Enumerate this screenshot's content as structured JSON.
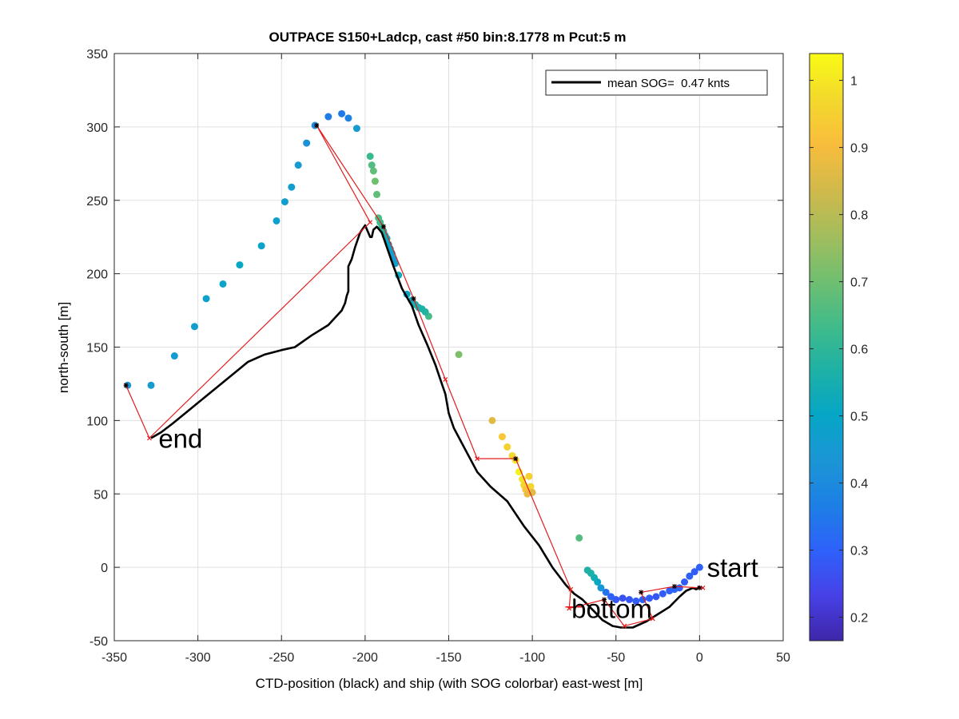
{
  "chart_data": {
    "type": "scatter",
    "title": "OUTPACE S150+Ladcp, cast #50 bin:8.1778 m  Pcut:5 m",
    "xlabel": "CTD-position (black) and ship (with SOG colorbar) east-west [m]",
    "ylabel": "north-south [m]",
    "xlim": [
      -350,
      50
    ],
    "ylim": [
      -50,
      350
    ],
    "xticks": [
      "-350",
      "-300",
      "-250",
      "-200",
      "-150",
      "-100",
      "-50",
      "0",
      "50"
    ],
    "yticks": [
      "-50",
      "0",
      "50",
      "100",
      "150",
      "200",
      "250",
      "300",
      "350"
    ],
    "grid": true,
    "legend": {
      "label": "mean SOG=  0.47 knts",
      "placement": "top-right"
    },
    "annotations": [
      {
        "text": "start",
        "x": 3,
        "y": 0
      },
      {
        "text": "bottom",
        "x": -78,
        "y": -28
      },
      {
        "text": "end",
        "x": -325,
        "y": 88
      }
    ],
    "colorbar": {
      "clim": [
        0.165,
        1.04
      ],
      "ticks": [
        "0.2",
        "0.3",
        "0.4",
        "0.5",
        "0.6",
        "0.7",
        "0.8",
        "0.9",
        "1"
      ],
      "colormap": [
        "#3e26a8",
        "#4741e7",
        "#2e61fa",
        "#1d7fe5",
        "#1b96d5",
        "#06a6c6",
        "#1eb1a5",
        "#42bb89",
        "#71bf6f",
        "#a4bd5c",
        "#d2b94a",
        "#f9bd3c",
        "#f3d92c",
        "#f9fb15"
      ]
    },
    "ctd_track": {
      "name": "CTD-position",
      "color": "#000000",
      "x": [
        0,
        -2,
        -4,
        -8,
        -12,
        -18,
        -25,
        -32,
        -40,
        -47,
        -52,
        -58,
        -63,
        -70,
        -75,
        -80,
        -88,
        -96,
        -105,
        -115,
        -125,
        -133,
        -140,
        -147,
        -150,
        -152,
        -155,
        -158,
        -163,
        -168,
        -172,
        -178,
        -183,
        -187,
        -190,
        -193,
        -195,
        -196,
        -197,
        -200,
        -203,
        -206,
        -208,
        -210,
        -210,
        -210,
        -211,
        -212,
        -214,
        -222,
        -232,
        -242,
        -250,
        -260,
        -270,
        -285,
        -300,
        -315,
        -322,
        -328
      ],
      "y": [
        -13,
        -15,
        -14,
        -16,
        -20,
        -27,
        -32,
        -37,
        -41,
        -41,
        -40,
        -36,
        -30,
        -22,
        -18,
        -12,
        0,
        15,
        28,
        45,
        55,
        65,
        80,
        95,
        105,
        118,
        128,
        138,
        152,
        165,
        178,
        190,
        205,
        218,
        228,
        232,
        230,
        225,
        225,
        233,
        228,
        218,
        210,
        205,
        196,
        188,
        185,
        180,
        175,
        165,
        158,
        150,
        148,
        145,
        140,
        126,
        112,
        98,
        92,
        88
      ]
    },
    "ship_sog": {
      "name": "ship",
      "x": [
        0,
        -3,
        -6,
        -9,
        -12,
        -15,
        -18,
        -22,
        -26,
        -30,
        -34,
        -38,
        -42,
        -46,
        -50,
        -53,
        -56,
        -59,
        -61,
        -63,
        -65,
        -67,
        -72,
        -110,
        -108,
        -106,
        -105,
        -104,
        -103,
        -102,
        -101,
        -100,
        -112,
        -115,
        -118,
        -124,
        -144,
        -162,
        -164,
        -166,
        -168,
        -170,
        -172,
        -175,
        -180,
        -182,
        -183,
        -184,
        -185,
        -186,
        -187,
        -188,
        -189,
        -190,
        -191,
        -192,
        -193,
        -194,
        -195,
        -196,
        -197,
        -205,
        -210,
        -214,
        -222,
        -230,
        -235,
        -240,
        -244,
        -248,
        -253,
        -262,
        -275,
        -285,
        -295,
        -302,
        -314,
        -328,
        -342
      ],
      "y": [
        0,
        -3,
        -6,
        -10,
        -14,
        -15,
        -16,
        -18,
        -20,
        -21,
        -22,
        -23,
        -22,
        -21,
        -22,
        -20,
        -17,
        -14,
        -10,
        -7,
        -4,
        -2,
        20,
        73,
        65,
        60,
        56,
        53,
        50,
        62,
        55,
        51,
        76,
        82,
        89,
        100,
        145,
        171,
        174,
        176,
        177,
        179,
        182,
        186,
        199,
        207,
        210,
        214,
        217,
        220,
        224,
        226,
        229,
        232,
        235,
        238,
        254,
        263,
        270,
        274,
        280,
        299,
        306,
        309,
        307,
        301,
        289,
        274,
        259,
        249,
        236,
        219,
        206,
        193,
        183,
        164,
        144,
        124,
        124
      ],
      "sog": [
        0.3,
        0.29,
        0.3,
        0.29,
        0.3,
        0.31,
        0.3,
        0.29,
        0.28,
        0.29,
        0.3,
        0.29,
        0.28,
        0.27,
        0.28,
        0.3,
        0.34,
        0.44,
        0.5,
        0.54,
        0.56,
        0.57,
        0.66,
        1.0,
        1.02,
        0.99,
        0.96,
        0.92,
        0.88,
        0.95,
        0.96,
        0.86,
        0.97,
        0.95,
        0.93,
        0.86,
        0.72,
        0.64,
        0.58,
        0.57,
        0.56,
        0.55,
        0.53,
        0.5,
        0.52,
        0.48,
        0.46,
        0.47,
        0.49,
        0.5,
        0.52,
        0.55,
        0.57,
        0.6,
        0.62,
        0.65,
        0.68,
        0.7,
        0.68,
        0.66,
        0.62,
        0.45,
        0.38,
        0.36,
        0.36,
        0.4,
        0.42,
        0.45,
        0.46,
        0.47,
        0.48,
        0.49,
        0.5,
        0.49,
        0.48,
        0.47,
        0.46,
        0.45,
        0.44
      ]
    },
    "profile_line": {
      "name": "profile",
      "color": "#e41c1c",
      "x": [
        -343,
        -329,
        -197,
        -229,
        -189,
        -171,
        -152,
        -133,
        -110,
        -77,
        -78,
        -57,
        -45,
        -28,
        -35,
        -15,
        0,
        2
      ],
      "y": [
        124,
        88,
        235,
        301,
        232,
        183,
        128,
        74,
        74,
        -15,
        -28,
        -22,
        -40,
        -35,
        -17,
        -13,
        -14,
        -14
      ],
      "black_star_indices": [
        0,
        3,
        4,
        5,
        8,
        11,
        14,
        15,
        16
      ]
    },
    "bottom_marker": {
      "x": -75,
      "y": -27
    }
  }
}
